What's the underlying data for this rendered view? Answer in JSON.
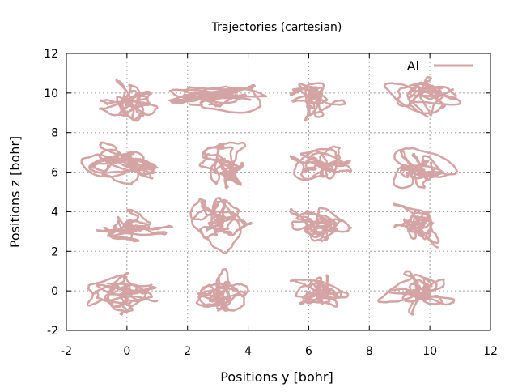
{
  "chart_data": {
    "type": "line",
    "title": "Trajectories (cartesian)",
    "xlabel": "Positions y [bohr]",
    "ylabel": "Positions z [bohr]",
    "xlim": [
      -2,
      12
    ],
    "ylim": [
      -2,
      12
    ],
    "xticks": [
      -2,
      0,
      2,
      4,
      6,
      8,
      10,
      12
    ],
    "yticks": [
      -2,
      0,
      2,
      4,
      6,
      8,
      10,
      12
    ],
    "grid": true,
    "legend_position": "top-right",
    "series": [
      {
        "name": "Al",
        "color": "#d4a3a3",
        "note_clusters": "approximate extent of each atom's trajectory in data units",
        "clusters": [
          {
            "y": [
              -0.9,
              1.0
            ],
            "z": [
              8.6,
              10.7
            ]
          },
          {
            "y": [
              1.4,
              4.6
            ],
            "z": [
              9.0,
              10.4
            ]
          },
          {
            "y": [
              5.4,
              7.2
            ],
            "z": [
              8.6,
              10.5
            ]
          },
          {
            "y": [
              8.5,
              11.0
            ],
            "z": [
              8.8,
              10.8
            ]
          },
          {
            "y": [
              -1.5,
              1.0
            ],
            "z": [
              5.4,
              7.5
            ]
          },
          {
            "y": [
              2.4,
              3.9
            ],
            "z": [
              5.2,
              7.5
            ]
          },
          {
            "y": [
              5.4,
              7.4
            ],
            "z": [
              5.6,
              7.3
            ]
          },
          {
            "y": [
              8.8,
              10.9
            ],
            "z": [
              5.2,
              7.2
            ]
          },
          {
            "y": [
              -1.0,
              1.5
            ],
            "z": [
              2.5,
              4.1
            ]
          },
          {
            "y": [
              2.1,
              4.1
            ],
            "z": [
              1.9,
              4.7
            ]
          },
          {
            "y": [
              5.4,
              7.4
            ],
            "z": [
              2.5,
              4.2
            ]
          },
          {
            "y": [
              8.8,
              10.3
            ],
            "z": [
              2.2,
              4.4
            ]
          },
          {
            "y": [
              -1.3,
              1.0
            ],
            "z": [
              -1.2,
              0.9
            ]
          },
          {
            "y": [
              2.3,
              4.0
            ],
            "z": [
              -1.0,
              1.1
            ]
          },
          {
            "y": [
              5.4,
              7.3
            ],
            "z": [
              -0.8,
              0.8
            ]
          },
          {
            "y": [
              8.3,
              10.8
            ],
            "z": [
              -1.2,
              1.0
            ]
          }
        ]
      }
    ]
  }
}
